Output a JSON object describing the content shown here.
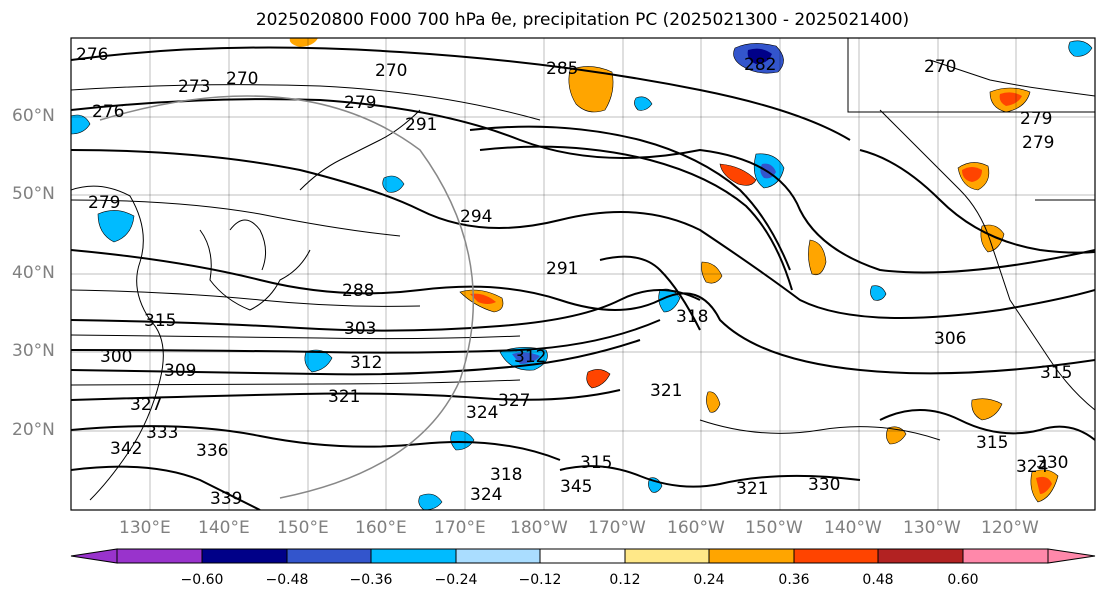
{
  "title": "2025020800 F000 700 hPa θe, precipitation PC (2025021300 - 2025021400)",
  "map": {
    "region": "North Pacific",
    "lon_range": [
      120,
      250
    ],
    "lat_range": [
      10,
      70
    ],
    "lat_labels": [
      "60°N",
      "50°N",
      "40°N",
      "30°N",
      "20°N"
    ],
    "lon_labels": [
      "130°E",
      "140°E",
      "150°E",
      "160°E",
      "170°E",
      "180°W",
      "170°W",
      "160°W",
      "150°W",
      "140°W",
      "130°W",
      "120°W"
    ],
    "contour_field": "700 hPa theta-e (K)",
    "contour_labels": [
      "276",
      "273",
      "270",
      "270",
      "276",
      "279",
      "279",
      "282",
      "285",
      "291",
      "294",
      "291",
      "288",
      "303",
      "300",
      "309",
      "312",
      "318",
      "306",
      "315",
      "321",
      "321",
      "324",
      "327",
      "330",
      "333",
      "336",
      "339",
      "342",
      "345",
      "318",
      "315",
      "324",
      "270",
      "279",
      "279",
      "312",
      "315",
      "321",
      "324",
      "327",
      "330",
      "315"
    ],
    "fill_field": "precipitation PC"
  },
  "colorbar": {
    "colors": [
      "#9933cc",
      "#000088",
      "#3355cc",
      "#00bbff",
      "#aaddff",
      "#ffffff",
      "#ffe888",
      "#ffa500",
      "#ff4400",
      "#b22222",
      "#ff88aa"
    ],
    "tick_labels": [
      "−0.60",
      "−0.48",
      "−0.36",
      "−0.24",
      "−0.12",
      "0.12",
      "0.24",
      "0.36",
      "0.48",
      "0.60"
    ]
  }
}
